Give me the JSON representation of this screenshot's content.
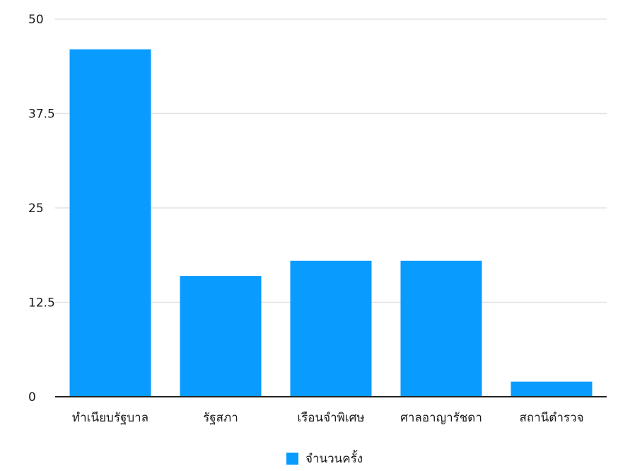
{
  "chart_data": {
    "type": "bar",
    "categories": [
      "ทำเนียบรัฐบาล",
      "รัฐสภา",
      "เรือนจำพิเศษ",
      "ศาลอาญารัชดา",
      "สถานีตำรวจ"
    ],
    "series": [
      {
        "name": "จำนวนครั้ง",
        "values": [
          46,
          16,
          18,
          18,
          2
        ]
      }
    ],
    "ylim": [
      0,
      50
    ],
    "yticks": [
      0,
      12.5,
      25,
      37.5,
      50
    ],
    "ytick_labels": [
      "0",
      "12.5",
      "25",
      "37.5",
      "50"
    ],
    "grid": true,
    "legend_position": "bottom-center",
    "colors": {
      "bar": "#0a9bff",
      "grid": "#e3e3e3",
      "axis": "#222222"
    }
  }
}
